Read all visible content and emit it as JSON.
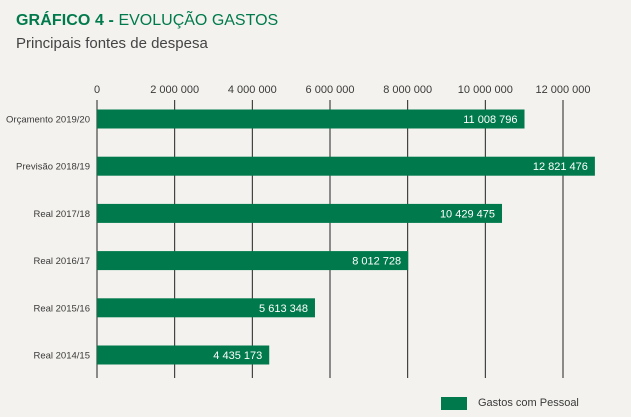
{
  "header": {
    "title_strong": "GRÁFICO 4 -",
    "title_rest": "EVOLUÇÃO GASTOS",
    "subtitle": "Principais fontes de despesa"
  },
  "colors": {
    "bar": "#007a4d",
    "gridline": "#222222",
    "background": "#f3f2ee"
  },
  "chart_data": {
    "type": "bar",
    "orientation": "horizontal",
    "title": "GRÁFICO 4 - EVOLUÇÃO GASTOS",
    "subtitle": "Principais fontes de despesa",
    "xlim": [
      0,
      12000000
    ],
    "x_ticks": [
      0,
      2000000,
      4000000,
      6000000,
      8000000,
      10000000,
      12000000
    ],
    "x_tick_labels": [
      "0",
      "2 000 000",
      "4 000 000",
      "6 000 000",
      "8 000 000",
      "10 000 000",
      "12 000 000"
    ],
    "categories": [
      "Orçamento 2019/20",
      "Previsão 2018/19",
      "Real 2017/18",
      "Real 2016/17",
      "Real 2015/16",
      "Real 2014/15"
    ],
    "series": [
      {
        "name": "Gastos com Pessoal",
        "values": [
          11008796,
          12821476,
          10429475,
          8012728,
          5613348,
          4435173
        ],
        "labels": [
          "11 008 796",
          "12 821 476",
          "10 429 475",
          "8 012 728",
          "5 613 348",
          "4 435 173"
        ]
      }
    ],
    "grid": true,
    "legend": "bottom-right"
  }
}
